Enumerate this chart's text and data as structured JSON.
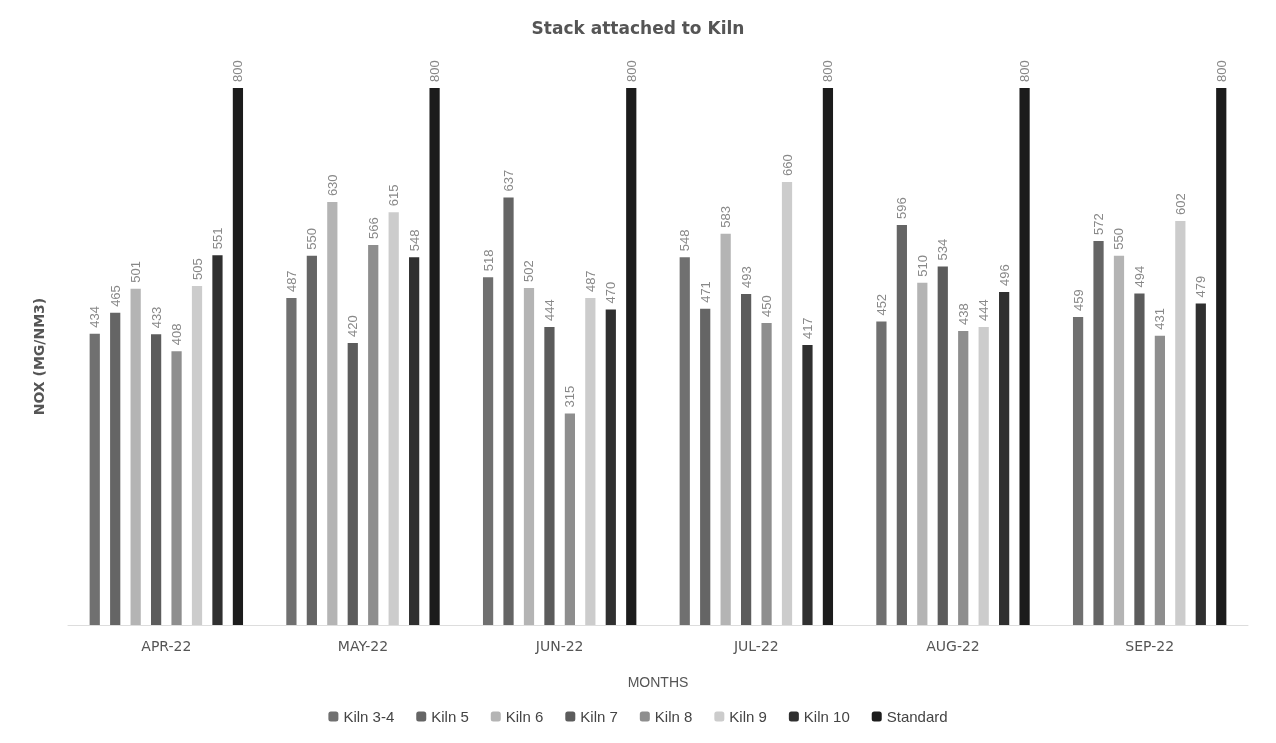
{
  "chart_data": {
    "type": "bar",
    "title": "Stack attached to Kiln",
    "xlabel": "MONTHS",
    "ylabel": "NOX (MG/NM3)",
    "categories": [
      "APR-22",
      "MAY-22",
      "JUN-22",
      "JUL-22",
      "AUG-22",
      "SEP-22"
    ],
    "series": [
      {
        "name": "Kiln 3-4",
        "color": "#707070",
        "values": [
          434,
          487,
          518,
          548,
          452,
          459
        ]
      },
      {
        "name": "Kiln 5",
        "color": "#656565",
        "values": [
          465,
          550,
          637,
          471,
          596,
          572
        ]
      },
      {
        "name": "Kiln 6",
        "color": "#b4b4b4",
        "values": [
          501,
          630,
          502,
          583,
          510,
          550
        ]
      },
      {
        "name": "Kiln 7",
        "color": "#5c5c5c",
        "values": [
          433,
          420,
          444,
          493,
          534,
          494
        ]
      },
      {
        "name": "Kiln 8",
        "color": "#8e8e8e",
        "values": [
          408,
          566,
          315,
          450,
          438,
          431
        ]
      },
      {
        "name": "Kiln 9",
        "color": "#cccccc",
        "values": [
          505,
          615,
          487,
          660,
          444,
          602
        ]
      },
      {
        "name": "Kiln 10",
        "color": "#303030",
        "values": [
          551,
          548,
          470,
          417,
          496,
          479
        ]
      },
      {
        "name": "Standard",
        "color": "#1c1c1c",
        "values": [
          800,
          800,
          800,
          800,
          800,
          800
        ]
      }
    ],
    "data_labels": true,
    "grid": false,
    "legend": "bottom",
    "tick_labels": "x"
  }
}
